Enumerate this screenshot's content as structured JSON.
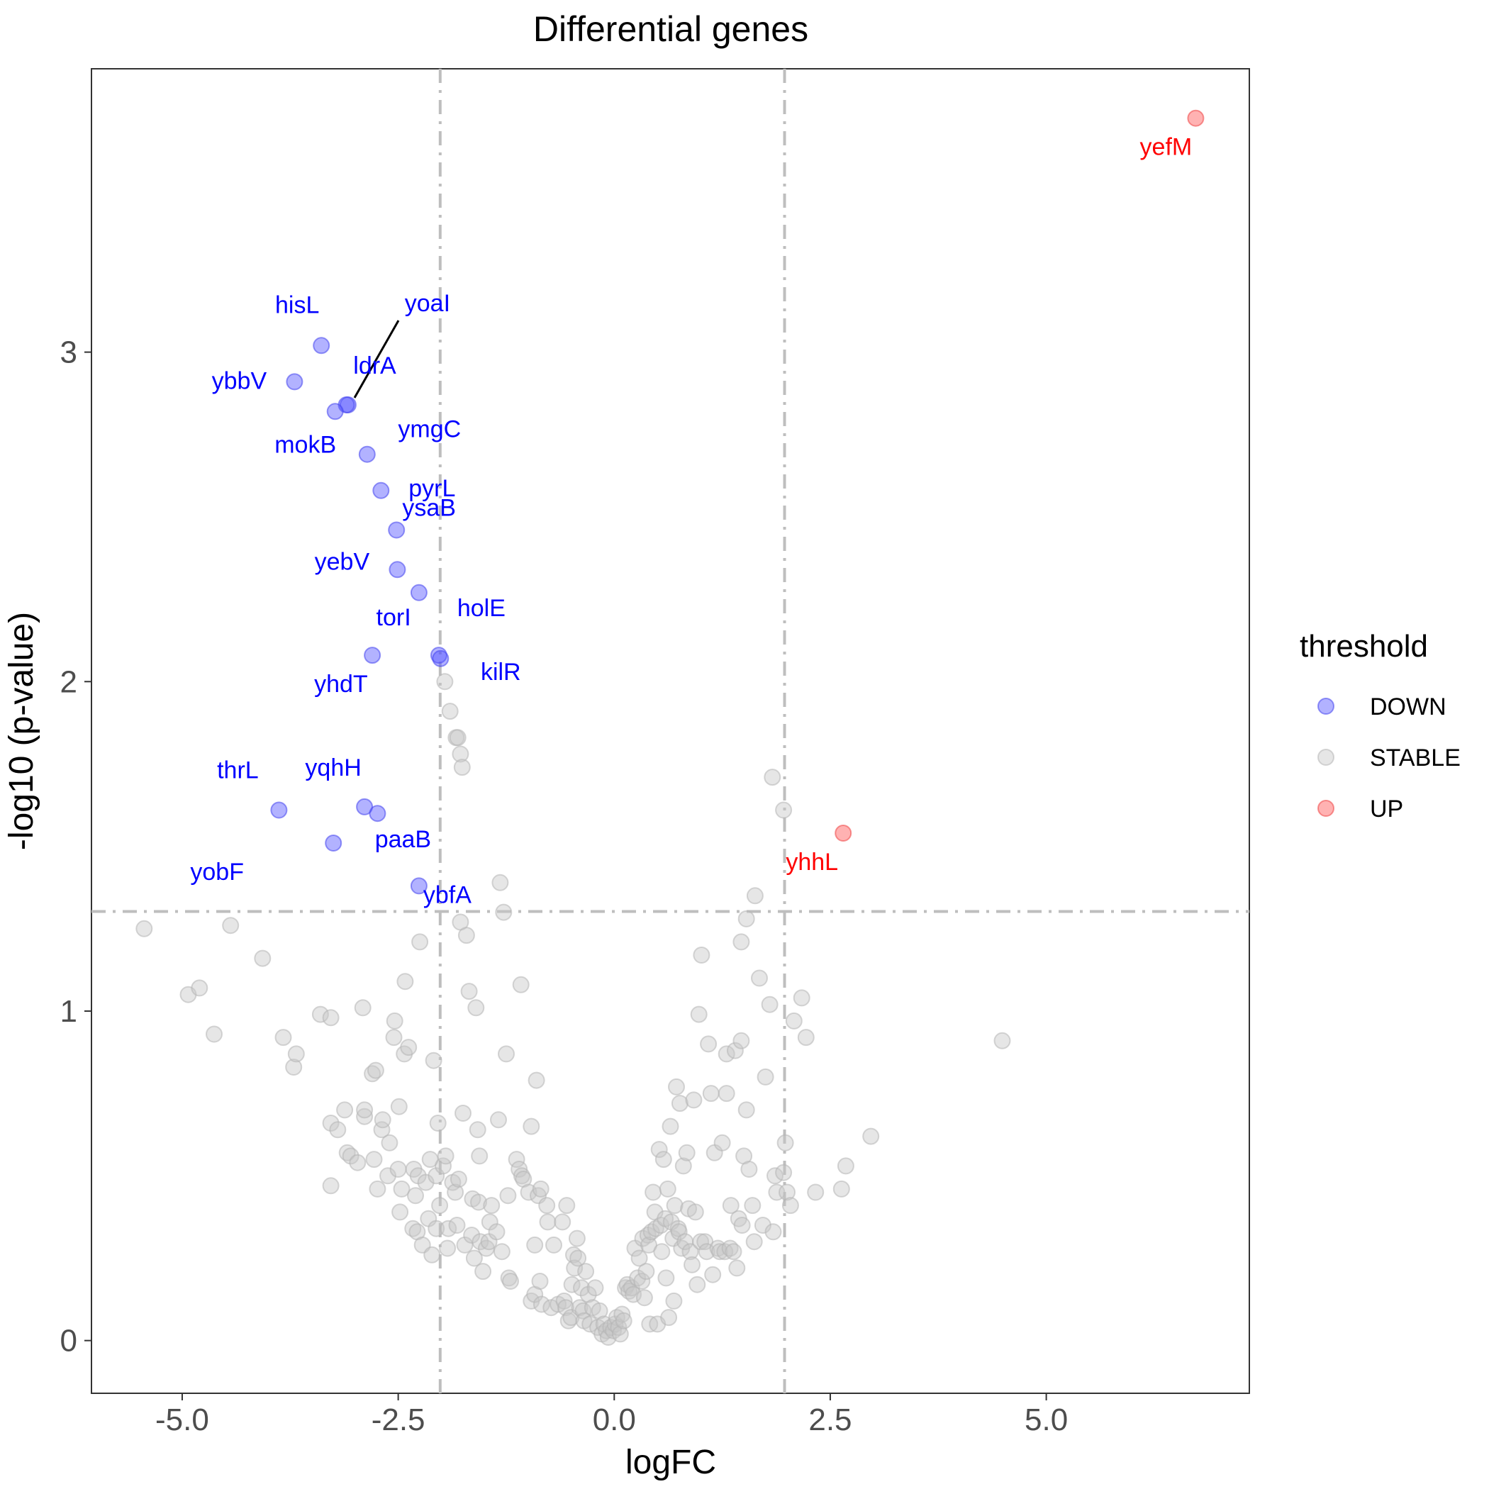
{
  "chart_data": {
    "type": "scatter",
    "title": "Differential genes",
    "xlabel": "logFC",
    "ylabel": "-log10 (p-value)",
    "xlim": [
      -6.05,
      7.35
    ],
    "ylim": [
      -0.16,
      3.86
    ],
    "x_ticks": [
      -5.0,
      -2.5,
      0.0,
      2.5,
      5.0
    ],
    "x_tick_labels": [
      "-5.0",
      "-2.5",
      "0.0",
      "2.5",
      "5.0"
    ],
    "y_ticks": [
      0,
      1,
      2,
      3
    ],
    "y_tick_labels": [
      "0",
      "1",
      "2",
      "3"
    ],
    "grid": false,
    "threshold_lines": {
      "logFC": [
        -2,
        2
      ],
      "neg_log10_p": 1.3
    },
    "legend": {
      "title": "threshold",
      "position": "right",
      "entries": [
        {
          "label": "DOWN",
          "color": "#0000ff"
        },
        {
          "label": "STABLE",
          "color": "#bebebe"
        },
        {
          "label": "UP",
          "color": "#ff0000"
        }
      ]
    },
    "colors": {
      "DOWN": "#0000ff",
      "STABLE": "#bebebe",
      "UP": "#ff0000"
    },
    "series": [
      {
        "name": "DOWN",
        "points": [
          {
            "x": -3.39,
            "y": 3.02,
            "label": "hisL"
          },
          {
            "x": -3.7,
            "y": 2.91,
            "label": "ybbV"
          },
          {
            "x": -3.08,
            "y": 2.84,
            "label": "yoaI"
          },
          {
            "x": -3.1,
            "y": 2.84,
            "label": "ldrA"
          },
          {
            "x": -3.23,
            "y": 2.82,
            "label": "mokB"
          },
          {
            "x": -2.86,
            "y": 2.69,
            "label": "ymgC"
          },
          {
            "x": -2.7,
            "y": 2.58,
            "label": "pyrL"
          },
          {
            "x": -2.52,
            "y": 2.46,
            "label": "ysaB"
          },
          {
            "x": -2.51,
            "y": 2.34,
            "label": "yebV"
          },
          {
            "x": -2.26,
            "y": 2.27,
            "label": "holE"
          },
          {
            "x": -2.8,
            "y": 2.08,
            "label": "torI"
          },
          {
            "x": -2.03,
            "y": 2.08,
            "label": "yhdT"
          },
          {
            "x": -2.01,
            "y": 2.07,
            "label": "kilR"
          },
          {
            "x": -3.88,
            "y": 1.61,
            "label": "thrL"
          },
          {
            "x": -2.89,
            "y": 1.62,
            "label": "yqhH"
          },
          {
            "x": -2.74,
            "y": 1.6,
            "label": "paaB"
          },
          {
            "x": -3.25,
            "y": 1.51,
            "label": "yobF"
          },
          {
            "x": -2.26,
            "y": 1.38,
            "label": "ybfA"
          }
        ]
      },
      {
        "name": "UP",
        "points": [
          {
            "x": 6.73,
            "y": 3.71,
            "label": "yefM"
          },
          {
            "x": 2.65,
            "y": 1.54,
            "label": "yhhL"
          }
        ]
      },
      {
        "name": "STABLE",
        "points": [
          [
            -5.44,
            1.25
          ],
          [
            -4.93,
            1.05
          ],
          [
            -4.8,
            1.07
          ],
          [
            -4.63,
            0.93
          ],
          [
            -4.44,
            1.26
          ],
          [
            -4.07,
            1.16
          ],
          [
            -3.83,
            0.92
          ],
          [
            -3.71,
            0.83
          ],
          [
            -3.68,
            0.87
          ],
          [
            -3.4,
            0.99
          ],
          [
            -3.28,
            0.98
          ],
          [
            -3.28,
            0.66
          ],
          [
            -3.28,
            0.47
          ],
          [
            -3.2,
            0.64
          ],
          [
            -3.12,
            0.7
          ],
          [
            -3.09,
            0.57
          ],
          [
            -3.05,
            0.56
          ],
          [
            -2.97,
            0.54
          ],
          [
            -2.91,
            1.01
          ],
          [
            -2.89,
            0.68
          ],
          [
            -2.89,
            0.7
          ],
          [
            -2.8,
            0.81
          ],
          [
            -2.78,
            0.55
          ],
          [
            -2.76,
            0.82
          ],
          [
            -2.74,
            0.46
          ],
          [
            -2.69,
            0.64
          ],
          [
            -2.68,
            0.67
          ],
          [
            -2.62,
            0.5
          ],
          [
            -2.6,
            0.6
          ],
          [
            -2.55,
            0.92
          ],
          [
            -2.54,
            0.97
          ],
          [
            -2.5,
            0.52
          ],
          [
            -2.49,
            0.71
          ],
          [
            -2.48,
            0.39
          ],
          [
            -2.46,
            0.46
          ],
          [
            -2.43,
            0.87
          ],
          [
            -2.42,
            1.09
          ],
          [
            -2.38,
            0.89
          ],
          [
            -2.33,
            0.34
          ],
          [
            -2.32,
            0.52
          ],
          [
            -2.3,
            0.44
          ],
          [
            -2.28,
            0.33
          ],
          [
            -2.27,
            0.5
          ],
          [
            -2.25,
            1.21
          ],
          [
            -2.22,
            0.29
          ],
          [
            -2.18,
            0.48
          ],
          [
            -2.15,
            0.37
          ],
          [
            -2.13,
            0.55
          ],
          [
            -2.11,
            0.26
          ],
          [
            -2.09,
            0.85
          ],
          [
            -2.06,
            0.5
          ],
          [
            -2.06,
            0.34
          ],
          [
            -2.04,
            0.66
          ],
          [
            -2.02,
            0.41
          ],
          [
            -1.98,
            0.53
          ],
          [
            -1.96,
            2.0
          ],
          [
            -1.95,
            0.56
          ],
          [
            -1.93,
            0.28
          ],
          [
            -1.92,
            0.34
          ],
          [
            -1.9,
            1.91
          ],
          [
            -1.87,
            0.48
          ],
          [
            -1.84,
            0.45
          ],
          [
            -1.83,
            1.83
          ],
          [
            -1.82,
            0.35
          ],
          [
            -1.81,
            1.83
          ],
          [
            -1.8,
            0.49
          ],
          [
            -1.78,
            1.27
          ],
          [
            -1.78,
            1.78
          ],
          [
            -1.76,
            1.74
          ],
          [
            -1.75,
            0.69
          ],
          [
            -1.73,
            0.29
          ],
          [
            -1.71,
            1.23
          ],
          [
            -1.68,
            1.06
          ],
          [
            -1.65,
            0.32
          ],
          [
            -1.64,
            0.43
          ],
          [
            -1.62,
            0.25
          ],
          [
            -1.6,
            1.01
          ],
          [
            -1.58,
            0.64
          ],
          [
            -1.57,
            0.42
          ],
          [
            -1.56,
            0.56
          ],
          [
            -1.55,
            0.3
          ],
          [
            -1.52,
            0.21
          ],
          [
            -1.48,
            0.28
          ],
          [
            -1.45,
            0.3
          ],
          [
            -1.44,
            0.36
          ],
          [
            -1.42,
            0.41
          ],
          [
            -1.36,
            0.33
          ],
          [
            -1.34,
            0.67
          ],
          [
            -1.32,
            1.39
          ],
          [
            -1.3,
            0.27
          ],
          [
            -1.28,
            1.3
          ],
          [
            -1.25,
            0.87
          ],
          [
            -1.22,
            0.19
          ],
          [
            -1.2,
            0.18
          ],
          [
            -1.13,
            0.55
          ],
          [
            -1.1,
            0.52
          ],
          [
            -1.08,
            1.08
          ],
          [
            -1.07,
            0.5
          ],
          [
            -1.05,
            0.49
          ],
          [
            -0.99,
            0.45
          ],
          [
            -0.96,
            0.12
          ],
          [
            -0.96,
            0.65
          ],
          [
            -0.92,
            0.29
          ],
          [
            -0.92,
            0.14
          ],
          [
            -0.9,
            0.79
          ],
          [
            -0.88,
            0.44
          ],
          [
            -0.86,
            0.18
          ],
          [
            -0.85,
            0.46
          ],
          [
            -0.84,
            0.11
          ],
          [
            -0.78,
            0.41
          ],
          [
            -0.77,
            0.36
          ],
          [
            -0.73,
            0.1
          ],
          [
            -0.7,
            0.29
          ],
          [
            -0.65,
            0.11
          ],
          [
            -0.6,
            0.36
          ],
          [
            -0.58,
            0.12
          ],
          [
            -0.56,
            0.1
          ],
          [
            -0.55,
            0.41
          ],
          [
            -0.53,
            0.06
          ],
          [
            -0.5,
            0.07
          ],
          [
            -0.49,
            0.17
          ],
          [
            -0.47,
            0.26
          ],
          [
            -0.46,
            0.22
          ],
          [
            -0.43,
            0.31
          ],
          [
            -0.42,
            0.25
          ],
          [
            -0.4,
            0.1
          ],
          [
            -0.38,
            0.16
          ],
          [
            -0.36,
            0.09
          ],
          [
            -0.35,
            0.06
          ],
          [
            -0.33,
            0.21
          ],
          [
            -0.3,
            0.14
          ],
          [
            -0.28,
            0.05
          ],
          [
            -0.25,
            0.1
          ],
          [
            -0.22,
            0.16
          ],
          [
            -0.19,
            0.04
          ],
          [
            -0.17,
            0.09
          ],
          [
            -0.14,
            0.02
          ],
          [
            -0.12,
            0.05
          ],
          [
            -0.09,
            0.03
          ],
          [
            -0.07,
            0.01
          ],
          [
            -0.04,
            0.04
          ],
          [
            -0.01,
            0.03
          ],
          [
            0.01,
            0.05
          ],
          [
            0.03,
            0.07
          ],
          [
            0.05,
            0.04
          ],
          [
            0.07,
            0.02
          ],
          [
            0.09,
            0.08
          ],
          [
            0.11,
            0.06
          ],
          [
            0.13,
            0.16
          ],
          [
            0.15,
            0.17
          ],
          [
            0.17,
            0.15
          ],
          [
            0.2,
            0.16
          ],
          [
            0.22,
            0.14
          ],
          [
            0.24,
            0.28
          ],
          [
            0.27,
            0.19
          ],
          [
            0.29,
            0.25
          ],
          [
            0.32,
            0.18
          ],
          [
            0.33,
            0.31
          ],
          [
            0.35,
            0.13
          ],
          [
            0.37,
            0.21
          ],
          [
            0.39,
            0.32
          ],
          [
            0.4,
            0.29
          ],
          [
            0.41,
            0.05
          ],
          [
            0.43,
            0.33
          ],
          [
            0.45,
            0.45
          ],
          [
            0.47,
            0.39
          ],
          [
            0.48,
            0.34
          ],
          [
            0.5,
            0.05
          ],
          [
            0.52,
            0.58
          ],
          [
            0.54,
            0.35
          ],
          [
            0.55,
            0.27
          ],
          [
            0.57,
            0.55
          ],
          [
            0.59,
            0.37
          ],
          [
            0.6,
            0.19
          ],
          [
            0.62,
            0.46
          ],
          [
            0.63,
            0.07
          ],
          [
            0.65,
            0.65
          ],
          [
            0.66,
            0.36
          ],
          [
            0.68,
            0.31
          ],
          [
            0.69,
            0.12
          ],
          [
            0.7,
            0.41
          ],
          [
            0.72,
            0.77
          ],
          [
            0.74,
            0.34
          ],
          [
            0.75,
            0.33
          ],
          [
            0.76,
            0.72
          ],
          [
            0.78,
            0.28
          ],
          [
            0.8,
            0.53
          ],
          [
            0.82,
            0.3
          ],
          [
            0.84,
            0.57
          ],
          [
            0.86,
            0.4
          ],
          [
            0.88,
            0.27
          ],
          [
            0.9,
            0.23
          ],
          [
            0.92,
            0.73
          ],
          [
            0.94,
            0.39
          ],
          [
            0.96,
            0.17
          ],
          [
            0.98,
            0.99
          ],
          [
            1.0,
            0.3
          ],
          [
            1.01,
            1.17
          ],
          [
            1.05,
            0.3
          ],
          [
            1.07,
            0.27
          ],
          [
            1.09,
            0.9
          ],
          [
            1.12,
            0.75
          ],
          [
            1.14,
            0.2
          ],
          [
            1.16,
            0.57
          ],
          [
            1.2,
            0.28
          ],
          [
            1.22,
            0.27
          ],
          [
            1.25,
            0.6
          ],
          [
            1.28,
            0.27
          ],
          [
            1.3,
            0.87
          ],
          [
            1.3,
            0.75
          ],
          [
            1.34,
            0.28
          ],
          [
            1.35,
            0.41
          ],
          [
            1.38,
            0.27
          ],
          [
            1.4,
            0.88
          ],
          [
            1.42,
            0.22
          ],
          [
            1.44,
            0.37
          ],
          [
            1.47,
            0.91
          ],
          [
            1.48,
            0.35
          ],
          [
            1.5,
            0.56
          ],
          [
            1.53,
            0.7
          ],
          [
            1.56,
            0.52
          ],
          [
            1.6,
            0.41
          ],
          [
            1.62,
            0.3
          ],
          [
            1.68,
            1.1
          ],
          [
            1.72,
            0.35
          ],
          [
            1.75,
            0.8
          ],
          [
            1.8,
            1.02
          ],
          [
            1.83,
            1.71
          ],
          [
            1.84,
            0.33
          ],
          [
            1.86,
            0.5
          ],
          [
            1.88,
            0.45
          ],
          [
            1.96,
            0.51
          ],
          [
            1.96,
            1.61
          ],
          [
            1.98,
            0.6
          ],
          [
            2.0,
            0.45
          ],
          [
            2.04,
            0.41
          ],
          [
            2.08,
            0.97
          ],
          [
            2.17,
            1.04
          ],
          [
            2.22,
            0.92
          ],
          [
            2.33,
            0.45
          ],
          [
            2.63,
            0.46
          ],
          [
            2.68,
            0.53
          ],
          [
            2.97,
            0.62
          ],
          [
            4.49,
            0.91
          ],
          [
            1.63,
            1.35
          ],
          [
            1.53,
            1.28
          ],
          [
            1.47,
            1.21
          ],
          [
            -1.23,
            0.44
          ]
        ]
      }
    ]
  }
}
